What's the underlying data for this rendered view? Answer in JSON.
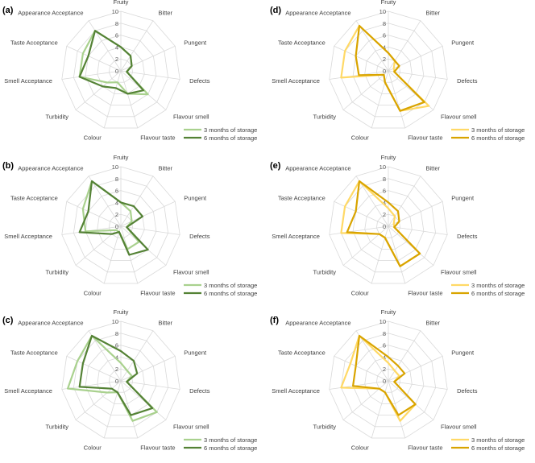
{
  "chart_data": [
    {
      "type": "radar",
      "panel_label": "(a)",
      "axes": [
        "Fruity",
        "Bitter",
        "Pungent",
        "Defects",
        "Flavour smell",
        "Flavour taste",
        "Colour",
        "Turbidity",
        "Smell Acceptance",
        "Taste Acceptance",
        "Appearance Acceptance"
      ],
      "rlim": [
        0,
        10
      ],
      "ticks": [
        0,
        2,
        4,
        6,
        8,
        10
      ],
      "series": [
        {
          "name": "3 months of storage",
          "color": "#a9d18e",
          "values": [
            4,
            3,
            2,
            1,
            6,
            4,
            2,
            3,
            7,
            7,
            8
          ]
        },
        {
          "name": "6 months of storage",
          "color": "#548235",
          "values": [
            4,
            3,
            2,
            1,
            5,
            4,
            3,
            4,
            7,
            6,
            8
          ]
        }
      ]
    },
    {
      "type": "radar",
      "panel_label": "(b)",
      "axes": [
        "Fruity",
        "Bitter",
        "Pungent",
        "Defects",
        "Flavour smell",
        "Flavour taste",
        "Colour",
        "Turbidity",
        "Smell Acceptance",
        "Taste Acceptance",
        "Appearance Acceptance"
      ],
      "rlim": [
        0,
        10
      ],
      "ticks": [
        0,
        2,
        4,
        6,
        8,
        10
      ],
      "series": [
        {
          "name": "3 months of storage",
          "color": "#a9d18e",
          "values": [
            4,
            3,
            2,
            1,
            4,
            4,
            1,
            1,
            6,
            7,
            9
          ]
        },
        {
          "name": "6 months of storage",
          "color": "#548235",
          "values": [
            4,
            4,
            4,
            1,
            6,
            5,
            1,
            2,
            7,
            6,
            9
          ]
        }
      ]
    },
    {
      "type": "radar",
      "panel_label": "(c)",
      "axes": [
        "Fruity",
        "Bitter",
        "Pungent",
        "Defects",
        "Flavour smell",
        "Flavour taste",
        "Colour",
        "Turbidity",
        "Smell Acceptance",
        "Taste Acceptance",
        "Appearance Acceptance"
      ],
      "rlim": [
        0,
        10
      ],
      "ticks": [
        0,
        2,
        4,
        6,
        8,
        10
      ],
      "series": [
        {
          "name": "3 months of storage",
          "color": "#a9d18e",
          "values": [
            3,
            2,
            2,
            1,
            8,
            7,
            2,
            3,
            9,
            8,
            9
          ]
        },
        {
          "name": "6 months of storage",
          "color": "#548235",
          "values": [
            5,
            4,
            3,
            1,
            7,
            6,
            2,
            2,
            7,
            7,
            9
          ]
        }
      ]
    },
    {
      "type": "radar",
      "panel_label": "(d)",
      "axes": [
        "Fruity",
        "Bitter",
        "Pungent",
        "Defects",
        "Flavour smell",
        "Flavour taste",
        "Colour",
        "Turbidity",
        "Smell Acceptance",
        "Taste Acceptance",
        "Appearance Acceptance"
      ],
      "rlim": [
        0,
        10
      ],
      "ticks": [
        0,
        2,
        4,
        6,
        8,
        10
      ],
      "series": [
        {
          "name": "3 months of storage",
          "color": "#ffd966",
          "values": [
            3,
            2,
            1,
            1,
            9,
            7,
            2,
            1,
            8,
            8,
            9
          ]
        },
        {
          "name": "6 months of storage",
          "color": "#d9a400",
          "values": [
            3,
            2,
            2,
            1,
            8,
            7,
            2,
            1,
            5,
            6,
            9
          ]
        }
      ]
    },
    {
      "type": "radar",
      "panel_label": "(e)",
      "axes": [
        "Fruity",
        "Bitter",
        "Pungent",
        "Defects",
        "Flavour smell",
        "Flavour taste",
        "Colour",
        "Turbidity",
        "Smell Acceptance",
        "Taste Acceptance",
        "Appearance Acceptance"
      ],
      "rlim": [
        0,
        10
      ],
      "ticks": [
        0,
        2,
        4,
        6,
        8,
        10
      ],
      "series": [
        {
          "name": "3 months of storage",
          "color": "#ffd966",
          "values": [
            3,
            2,
            1,
            1,
            7,
            7,
            2,
            2,
            8,
            8,
            9
          ]
        },
        {
          "name": "6 months of storage",
          "color": "#d9a400",
          "values": [
            4,
            3,
            2,
            1,
            7,
            7,
            2,
            2,
            7,
            6,
            9
          ]
        }
      ]
    },
    {
      "type": "radar",
      "panel_label": "(f)",
      "axes": [
        "Fruity",
        "Bitter",
        "Pungent",
        "Defects",
        "Flavour smell",
        "Flavour taste",
        "Colour",
        "Turbidity",
        "Smell Acceptance",
        "Taste Acceptance",
        "Appearance Acceptance"
      ],
      "rlim": [
        0,
        10
      ],
      "ticks": [
        0,
        2,
        4,
        6,
        8,
        10
      ],
      "series": [
        {
          "name": "3 months of storage",
          "color": "#ffd966",
          "values": [
            3,
            2,
            2,
            1,
            6,
            7,
            2,
            2,
            8,
            7,
            9
          ]
        },
        {
          "name": "6 months of storage",
          "color": "#d9a400",
          "values": [
            4,
            3,
            3,
            1,
            6,
            6,
            2,
            2,
            6,
            6,
            9
          ]
        }
      ]
    }
  ]
}
